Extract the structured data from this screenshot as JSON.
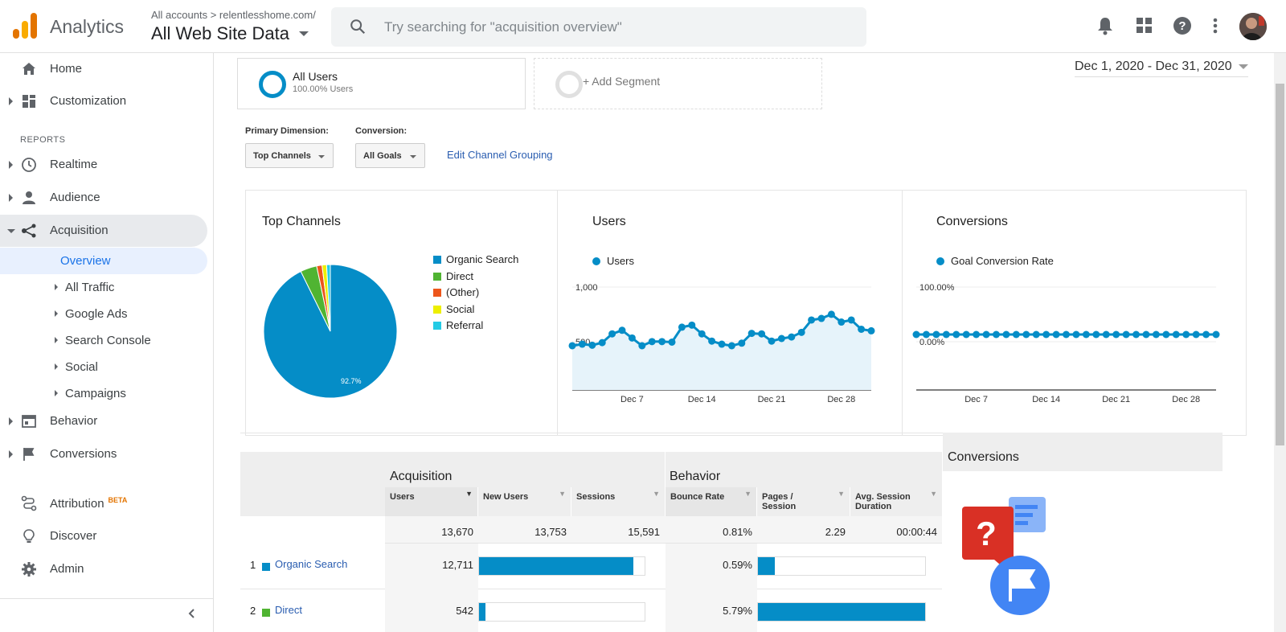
{
  "topbar": {
    "app_name": "Analytics",
    "account_crumb": "All accounts > relentlesshome.com/",
    "view_name": "All Web Site Data",
    "search_placeholder": "Try searching for \"acquisition overview\""
  },
  "sidebar": {
    "home": "Home",
    "customization": "Customization",
    "reports_header": "REPORTS",
    "realtime": "Realtime",
    "audience": "Audience",
    "acquisition": "Acquisition",
    "sub_items": [
      "Overview",
      "All Traffic",
      "Google Ads",
      "Search Console",
      "Social",
      "Campaigns"
    ],
    "behavior": "Behavior",
    "conversions": "Conversions",
    "attribution": "Attribution",
    "attribution_badge": "BETA",
    "discover": "Discover",
    "admin": "Admin"
  },
  "segments": {
    "segment1_name": "All Users",
    "segment1_sub": "100.00% Users",
    "add_segment": "+ Add Segment"
  },
  "date_range": "Dec 1, 2020 - Dec 31, 2020",
  "controls": {
    "primary_dimension_label": "Primary Dimension:",
    "primary_dimension_value": "Top Channels",
    "conversion_label": "Conversion:",
    "conversion_value": "All Goals",
    "edit_link": "Edit Channel Grouping"
  },
  "colors": {
    "organic": "#058dc7",
    "direct": "#50b432",
    "other": "#ed561b",
    "social": "#edef00",
    "referral": "#24cbe5"
  },
  "chart_data": [
    {
      "type": "pie",
      "title": "Top Channels",
      "labels": [
        "Organic Search",
        "Direct",
        "(Other)",
        "Social",
        "Referral"
      ],
      "values": [
        92.7,
        4.0,
        1.3,
        1.1,
        0.9
      ],
      "slice_label": "92.7%"
    },
    {
      "type": "area",
      "title": "Users",
      "series": [
        {
          "name": "Users",
          "values": [
            430,
            445,
            435,
            460,
            545,
            580,
            505,
            430,
            470,
            470,
            465,
            610,
            630,
            545,
            475,
            445,
            430,
            455,
            550,
            545,
            475,
            500,
            515,
            560,
            680,
            695,
            735,
            660,
            680,
            590,
            575
          ]
        }
      ],
      "x_ticks": [
        "Dec 7",
        "Dec 14",
        "Dec 21",
        "Dec 28"
      ],
      "y_ticks": [
        "1,000",
        "500"
      ]
    },
    {
      "type": "line",
      "title": "Conversions",
      "series": [
        {
          "name": "Goal Conversion Rate",
          "values": [
            0,
            0,
            0,
            0,
            0,
            0,
            0,
            0,
            0,
            0,
            0,
            0,
            0,
            0,
            0,
            0,
            0,
            0,
            0,
            0,
            0,
            0,
            0,
            0,
            0,
            0,
            0,
            0,
            0,
            0,
            0
          ]
        }
      ],
      "x_ticks": [
        "Dec 7",
        "Dec 14",
        "Dec 21",
        "Dec 28"
      ],
      "y_ticks": [
        "100.00%",
        "0.00%"
      ]
    }
  ],
  "table": {
    "acq_header": "Acquisition",
    "beh_header": "Behavior",
    "conv_header": "Conversions",
    "columns": [
      "Users",
      "New Users",
      "Sessions",
      "Bounce Rate",
      "Pages / Session",
      "Avg. Session Duration"
    ],
    "totals": [
      "13,670",
      "13,753",
      "15,591",
      "0.81%",
      "2.29",
      "00:00:44"
    ],
    "rows": [
      {
        "rank": "1",
        "channel": "Organic Search",
        "users": "12,711",
        "users_frac": 0.93,
        "bounce": "0.59%",
        "bounce_frac": 0.1
      },
      {
        "rank": "2",
        "channel": "Direct",
        "users": "542",
        "users_frac": 0.04,
        "bounce": "5.79%",
        "bounce_frac": 1.0
      }
    ]
  }
}
